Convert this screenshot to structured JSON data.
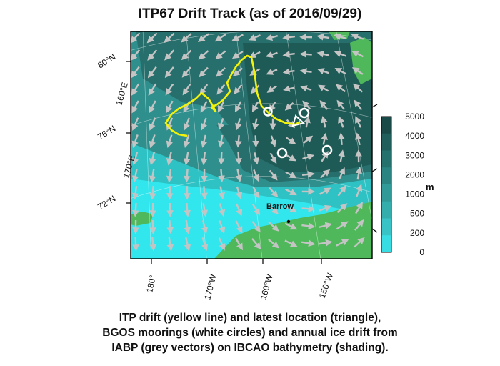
{
  "title": "ITP67 Drift Track (as of 2016/09/29)",
  "map": {
    "lat_labels": [
      "80°N",
      "76°N",
      "72°N"
    ],
    "lon_labels_left": [
      "160°E",
      "170°E"
    ],
    "lon_labels_bottom": [
      "180°",
      "170°W",
      "160°W",
      "150°W"
    ],
    "place_label": "Barrow",
    "colors": {
      "deep": "#1e5b57",
      "mid": "#2f8f8d",
      "shelf": "#2fc2c4",
      "shallow": "#31e6ec",
      "land": "#4fb85a",
      "track": "#f2f20a",
      "vector": "#c4c4c4",
      "mooring": "#ffffff"
    }
  },
  "colorbar": {
    "ticks": [
      "5000",
      "4000",
      "3000",
      "2000",
      "1000",
      "500",
      "200",
      "0"
    ],
    "unit": "m",
    "colors": [
      "#1a4a47",
      "#1f5e5a",
      "#24716d",
      "#2a8582",
      "#2f9a98",
      "#34adad",
      "#38c4c6",
      "#37dde3"
    ]
  },
  "caption": {
    "line1": "ITP drift (yellow line) and latest location (triangle),",
    "line2": "BGOS moorings (white circles) and annual ice drift from",
    "line3": "IABP (grey vectors) on IBCAO bathymetry (shading)."
  }
}
